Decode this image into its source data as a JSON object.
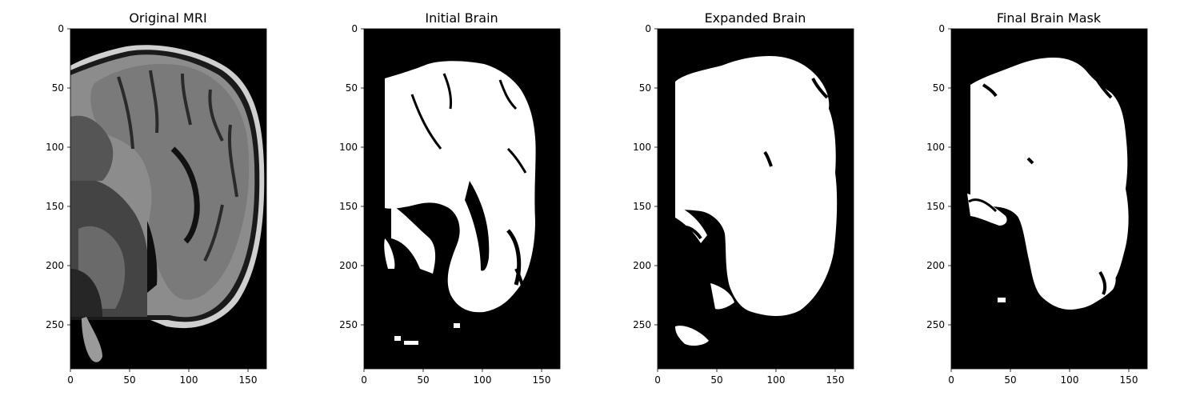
{
  "figure": {
    "panels": [
      {
        "title": "Original MRI",
        "type": "mri",
        "x_ticks": [
          "0",
          "50",
          "100",
          "150"
        ],
        "y_ticks": [
          "0",
          "50",
          "100",
          "150",
          "200",
          "250"
        ]
      },
      {
        "title": "Initial Brain",
        "type": "mask-initial",
        "x_ticks": [
          "0",
          "50",
          "100",
          "150"
        ],
        "y_ticks": [
          "0",
          "50",
          "100",
          "150",
          "200",
          "250"
        ]
      },
      {
        "title": "Expanded Brain",
        "type": "mask-expanded",
        "x_ticks": [
          "0",
          "50",
          "100",
          "150"
        ],
        "y_ticks": [
          "0",
          "50",
          "100",
          "150",
          "200",
          "250"
        ]
      },
      {
        "title": "Final Brain Mask",
        "type": "mask-final",
        "x_ticks": [
          "0",
          "50",
          "100",
          "150"
        ],
        "y_ticks": [
          "0",
          "50",
          "100",
          "150",
          "200",
          "250"
        ]
      }
    ],
    "image_width": 166,
    "image_height": 288,
    "colors": {
      "background": "#000000",
      "mask": "#ffffff",
      "tissue": "#8a8a8a"
    }
  }
}
